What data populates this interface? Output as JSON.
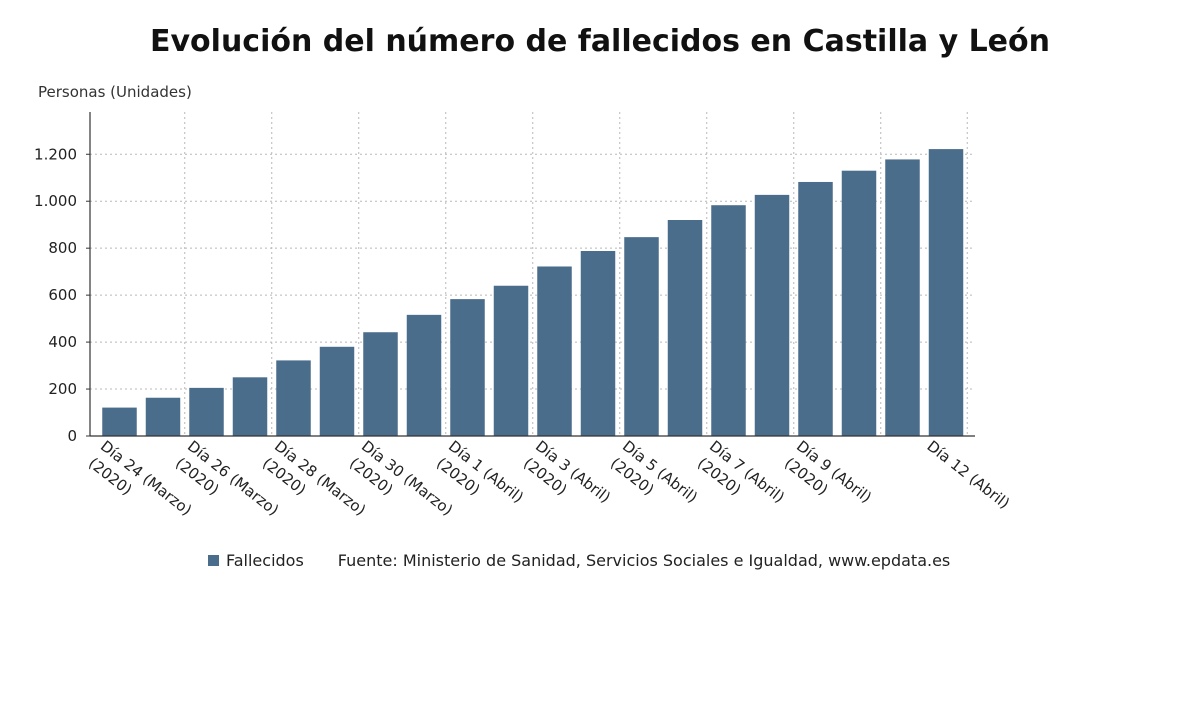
{
  "chart_data": {
    "type": "bar",
    "title": "Evolución del número de fallecidos en Castilla y León",
    "ylabel": "Personas (Unidades)",
    "xlabel": "",
    "ylim": [
      0,
      1380
    ],
    "yticks": [
      0,
      200,
      400,
      600,
      800,
      1000,
      1200
    ],
    "ytick_labels": [
      "0",
      "200",
      "400",
      "600",
      "800",
      "1.000",
      "1.200"
    ],
    "grid": true,
    "legend_position": "bottom",
    "source": "Fuente: Ministerio de Sanidad, Servicios Sociales e Igualdad, www.epdata.es",
    "x_tick_labels": [
      {
        "index": 0,
        "lines": [
          "Día 24 (Marzo)",
          "(2020)"
        ]
      },
      {
        "index": 2,
        "lines": [
          "Día 26 (Marzo)",
          "(2020)"
        ]
      },
      {
        "index": 4,
        "lines": [
          "Día 28 (Marzo)",
          "(2020)"
        ]
      },
      {
        "index": 6,
        "lines": [
          "Día 30 (Marzo)",
          "(2020)"
        ]
      },
      {
        "index": 8,
        "lines": [
          "Día 1 (Abril)",
          "(2020)"
        ]
      },
      {
        "index": 10,
        "lines": [
          "Día 3 (Abril)",
          "(2020)"
        ]
      },
      {
        "index": 12,
        "lines": [
          "Día 5 (Abril)",
          "(2020)"
        ]
      },
      {
        "index": 14,
        "lines": [
          "Día 7 (Abril)",
          "(2020)"
        ]
      },
      {
        "index": 16,
        "lines": [
          "Día 9 (Abril)",
          "(2020)"
        ]
      },
      {
        "index": 19,
        "lines": [
          "Día 12 (Abril)"
        ]
      }
    ],
    "series": [
      {
        "name": "Fallecidos",
        "color": "#4b6d8c",
        "values": [
          121,
          163,
          205,
          250,
          322,
          380,
          442,
          516,
          583,
          640,
          722,
          788,
          847,
          920,
          983,
          1027,
          1082,
          1130,
          1178,
          1222
        ]
      }
    ]
  }
}
